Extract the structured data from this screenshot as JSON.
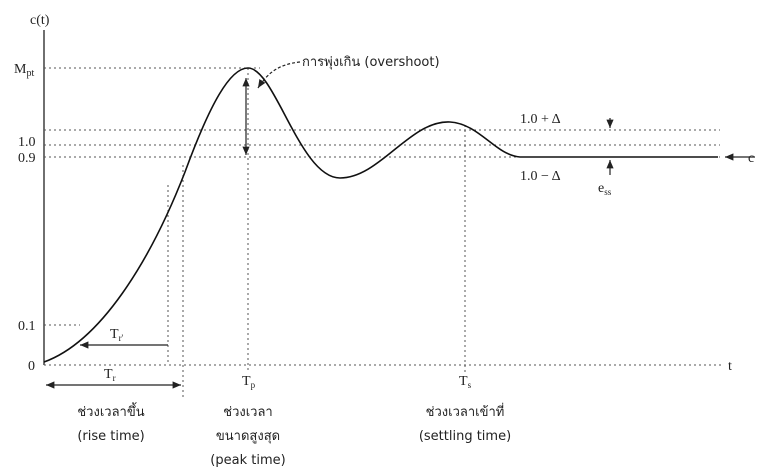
{
  "title": "c(t)",
  "x_axis_label": "t",
  "y_labels": {
    "peak": {
      "main": "M",
      "sub": "pt"
    },
    "one": "1.0",
    "ninety": "0.9",
    "ten": "0.1",
    "zero": "0"
  },
  "annotations": {
    "overshoot": "การพุ่งเกิน (overshoot)",
    "upper_band": "1.0 + Δ",
    "lower_band": "1.0 − Δ",
    "ess": {
      "main": "e",
      "sub": "ss"
    },
    "final": "c"
  },
  "times": {
    "rise_inner": {
      "main": "T",
      "sub": "r'"
    },
    "rise": {
      "main": "T",
      "sub": "r"
    },
    "peak": {
      "main": "T",
      "sub": "p"
    },
    "settling": {
      "main": "T",
      "sub": "s"
    }
  },
  "captions": {
    "rise": [
      "ช่วงเวลาขึ้น",
      "(rise time)"
    ],
    "peak": [
      "ช่วงเวลา",
      "ขนาดสูงสุด",
      "(peak time)"
    ],
    "settling": [
      "ช่วงเวลาเข้าที่",
      "(settling time)"
    ]
  }
}
